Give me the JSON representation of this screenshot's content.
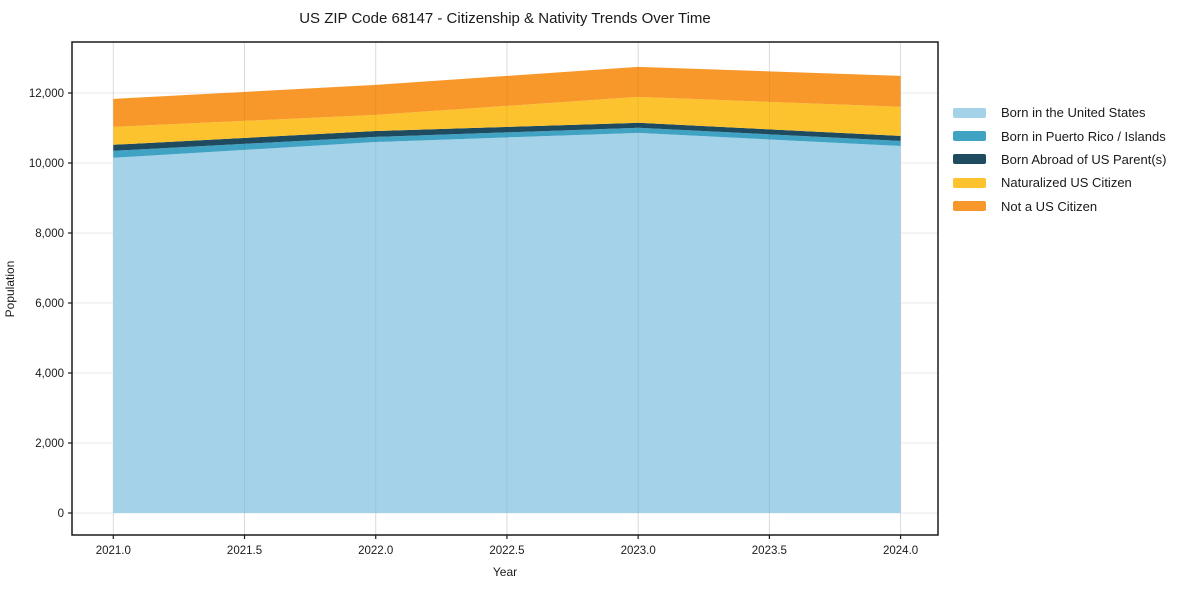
{
  "chart_data": {
    "type": "area",
    "stacked": true,
    "title": "US ZIP Code 68147 - Citizenship & Nativity Trends Over Time",
    "xlabel": "Year",
    "ylabel": "Population",
    "x": [
      2021,
      2022,
      2023,
      2024
    ],
    "series": [
      {
        "name": "Born in the United States",
        "color": "#a4d2e8",
        "values": [
          10150,
          10600,
          10860,
          10485
        ]
      },
      {
        "name": "Born in Puerto Rico / Islands",
        "color": "#41a3c4",
        "values": [
          200,
          145,
          145,
          145
        ]
      },
      {
        "name": "Born Abroad of US Parent(s)",
        "color": "#1e4b5f",
        "values": [
          170,
          170,
          145,
          145
        ]
      },
      {
        "name": "Naturalized US Citizen",
        "color": "#fcc32e",
        "values": [
          510,
          460,
          740,
          830
        ]
      },
      {
        "name": "Not a US Citizen",
        "color": "#f8982b",
        "values": [
          800,
          855,
          855,
          885
        ]
      }
    ],
    "totals": [
      11830,
      12230,
      12745,
      12490
    ],
    "x_ticks": [
      {
        "value": 2021.0,
        "label": "2021.0"
      },
      {
        "value": 2021.5,
        "label": "2021.5"
      },
      {
        "value": 2022.0,
        "label": "2022.0"
      },
      {
        "value": 2022.5,
        "label": "2022.5"
      },
      {
        "value": 2023.0,
        "label": "2023.0"
      },
      {
        "value": 2023.5,
        "label": "2023.5"
      },
      {
        "value": 2024.0,
        "label": "2024.0"
      }
    ],
    "y_ticks": [
      {
        "value": 0,
        "label": "0"
      },
      {
        "value": 2000,
        "label": "2,000"
      },
      {
        "value": 4000,
        "label": "4,000"
      },
      {
        "value": 6000,
        "label": "6,000"
      },
      {
        "value": 8000,
        "label": "8,000"
      },
      {
        "value": 10000,
        "label": "10,000"
      },
      {
        "value": 12000,
        "label": "12,000"
      }
    ],
    "ylim": [
      -630,
      13460
    ],
    "grid": true,
    "legend_position": "right-outside",
    "colors": {
      "spine": "#1a1a1a",
      "grid": "#e9e9e9",
      "background": "#ffffff"
    }
  }
}
